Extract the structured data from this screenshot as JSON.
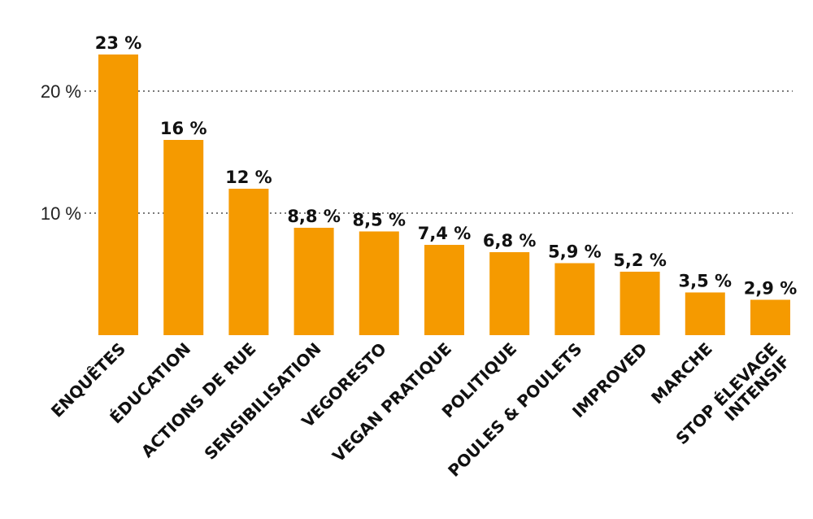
{
  "chart_data": {
    "type": "bar",
    "title": "",
    "xlabel": "",
    "ylabel": "",
    "ylim": [
      0,
      25
    ],
    "grid": true,
    "y_ticks": [
      {
        "value": 10,
        "label": "10 %"
      },
      {
        "value": 20,
        "label": "20 %"
      }
    ],
    "bar_color": "#f59a00",
    "categories": [
      "ENQUÊTES",
      "ÉDUCATION",
      "ACTIONS DE RUE",
      "SENSIBILISATION",
      "VEGORESTO",
      "VEGAN PRATIQUE",
      "POLITIQUE",
      "POULES & POULETS",
      "IMPROVED",
      "MARCHE",
      [
        "STOP ÉLEVAGE",
        "INTENSIF"
      ]
    ],
    "values": [
      23,
      16,
      12,
      8.8,
      8.5,
      7.4,
      6.8,
      5.9,
      5.2,
      3.5,
      2.9
    ],
    "value_labels": [
      "23 %",
      "16 %",
      "12 %",
      "8,8 %",
      "8,5 %",
      "7,4 %",
      "6,8 %",
      "5,9 %",
      "5,2 %",
      "3,5 %",
      "2,9 %"
    ]
  }
}
